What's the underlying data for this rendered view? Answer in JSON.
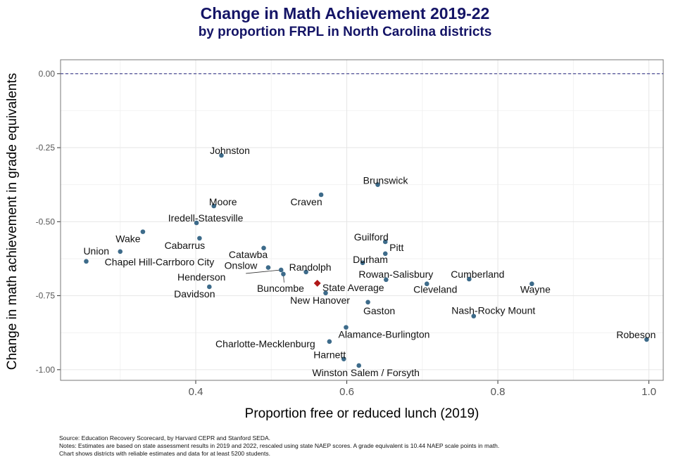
{
  "chart_data": {
    "type": "scatter",
    "title": "Change in Math Achievement 2019-22",
    "subtitle": "by proportion FRPL in North Carolina districts",
    "xlabel": "Proportion free or reduced lunch (2019)",
    "ylabel": "Change in math achievement in grade equivalents",
    "xlim": [
      0.221,
      1.019
    ],
    "ylim": [
      -1.036,
      0.047
    ],
    "xticks": [
      0.4,
      0.6,
      0.8,
      1.0
    ],
    "xtick_labels": [
      "0.4",
      "0.6",
      "0.8",
      "1.0"
    ],
    "yticks": [
      0.0,
      -0.25,
      -0.5,
      -0.75,
      -1.0
    ],
    "ytick_labels": [
      "0.00",
      "-0.25",
      "-0.50",
      "-0.75",
      "-1.00"
    ],
    "grid": true,
    "reference_line": {
      "y": 0.0,
      "style": "dashed",
      "color": "#3a3a8c"
    },
    "point_color": "#3d6b8a",
    "highlight_color": "#b01818",
    "points": [
      {
        "name": "Johnston",
        "x": 0.434,
        "y": -0.276
      },
      {
        "name": "Brunswick",
        "x": 0.641,
        "y": -0.375
      },
      {
        "name": "Craven",
        "x": 0.566,
        "y": -0.409
      },
      {
        "name": "Moore",
        "x": 0.424,
        "y": -0.447
      },
      {
        "name": "Iredell-Statesville",
        "x": 0.401,
        "y": -0.504
      },
      {
        "name": "Wake",
        "x": 0.33,
        "y": -0.534
      },
      {
        "name": "Cabarrus",
        "x": 0.405,
        "y": -0.556
      },
      {
        "name": "Union",
        "x": 0.3,
        "y": -0.601
      },
      {
        "name": "Chapel Hill-Carrboro City",
        "x": 0.255,
        "y": -0.634
      },
      {
        "name": "Catawba",
        "x": 0.49,
        "y": -0.589
      },
      {
        "name": "Onslow",
        "x": 0.496,
        "y": -0.655
      },
      {
        "name": "Henderson",
        "x": 0.513,
        "y": -0.663
      },
      {
        "name": "Buncombe",
        "x": 0.516,
        "y": -0.677
      },
      {
        "name": "Randolph",
        "x": 0.546,
        "y": -0.67
      },
      {
        "name": "Davidson",
        "x": 0.418,
        "y": -0.72
      },
      {
        "name": "State Average",
        "x": 0.561,
        "y": -0.708,
        "highlight": true
      },
      {
        "name": "New Hanover",
        "x": 0.572,
        "y": -0.741
      },
      {
        "name": "Gaston",
        "x": 0.628,
        "y": -0.772
      },
      {
        "name": "Guilford",
        "x": 0.651,
        "y": -0.568
      },
      {
        "name": "Pitt",
        "x": 0.651,
        "y": -0.608
      },
      {
        "name": "Durham",
        "x": 0.621,
        "y": -0.639
      },
      {
        "name": "Rowan-Salisbury",
        "x": 0.652,
        "y": -0.696
      },
      {
        "name": "Cleveland",
        "x": 0.706,
        "y": -0.71
      },
      {
        "name": "Cumberland",
        "x": 0.762,
        "y": -0.694
      },
      {
        "name": "Wayne",
        "x": 0.845,
        "y": -0.71
      },
      {
        "name": "Nash-Rocky Mount",
        "x": 0.768,
        "y": -0.819
      },
      {
        "name": "Robeson",
        "x": 0.997,
        "y": -0.898
      },
      {
        "name": "Alamance-Burlington",
        "x": 0.599,
        "y": -0.857
      },
      {
        "name": "Charlotte-Mecklenburg",
        "x": 0.577,
        "y": -0.905
      },
      {
        "name": "Harnett",
        "x": 0.596,
        "y": -0.964
      },
      {
        "name": "Winston Salem / Forsyth",
        "x": 0.616,
        "y": -0.986
      }
    ]
  },
  "notes": {
    "source": "Source: Education Recovery Scorecard, by Harvard CEPR and Stanford SEDA.",
    "line2": "Notes: Estimates are based on state assessment results in 2019 and 2022, rescaled using state NAEP scores. A grade equivalent is 10.44 NAEP scale points in math.",
    "line3": "Chart shows districts with reliable estimates and data for at least 5200 students."
  }
}
